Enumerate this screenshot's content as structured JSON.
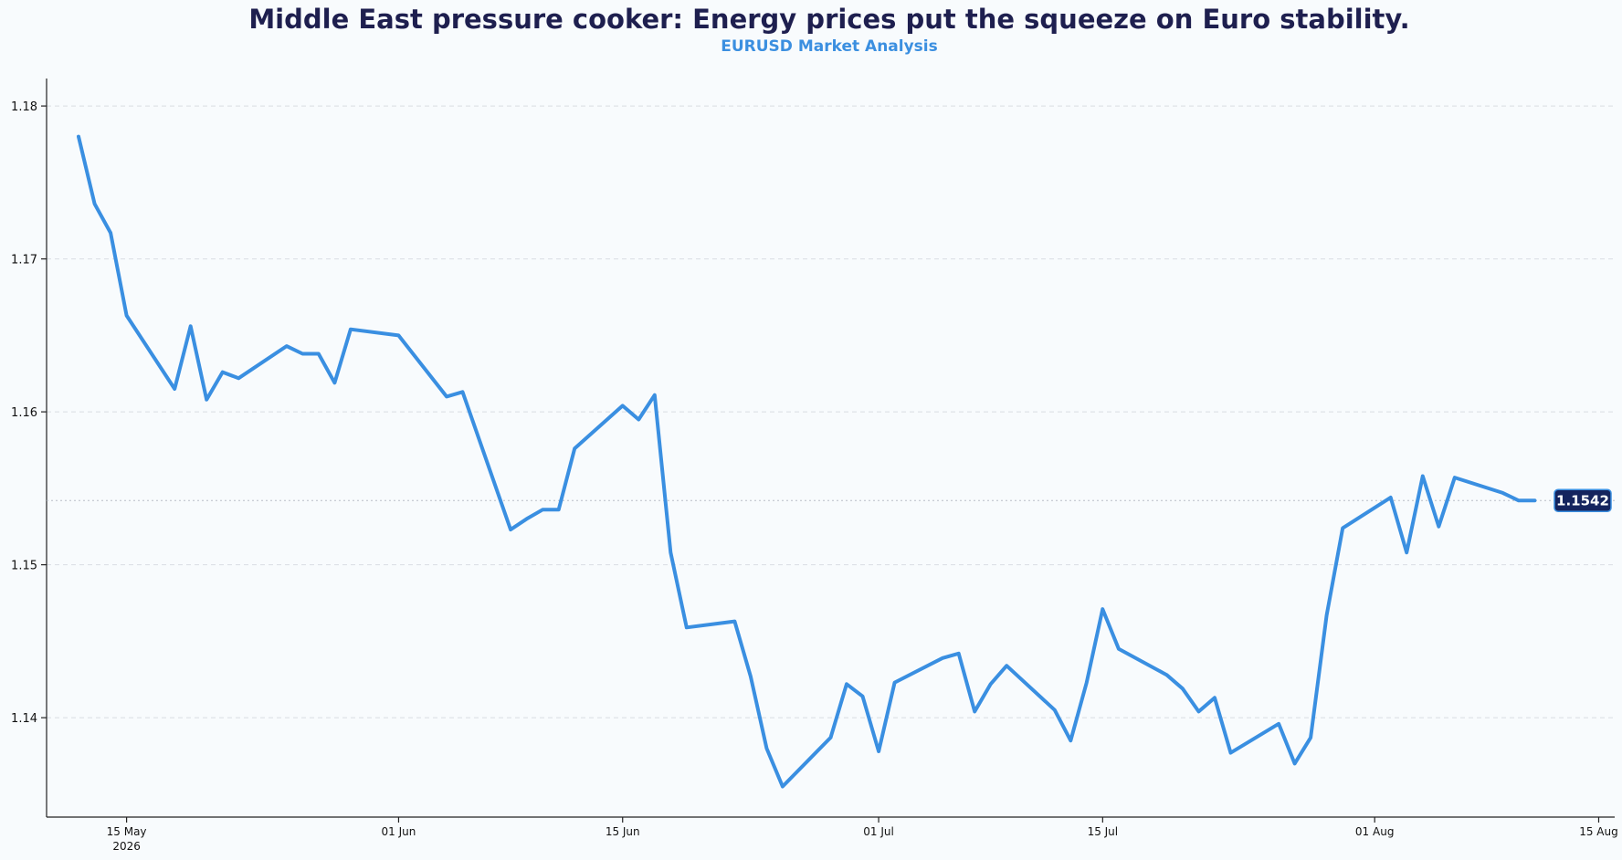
{
  "chart_data": {
    "type": "line",
    "title": "Middle East pressure cooker: Energy prices put the squeeze on Euro stability.",
    "subtitle": "EURUSD Market Analysis",
    "xlabel": "",
    "ylabel": "",
    "ylim": [
      1.1335,
      1.1812
    ],
    "xlim": [
      "2026-05-10",
      "2026-08-16"
    ],
    "y_ticks": [
      "1.14",
      "1.15",
      "1.16",
      "1.17",
      "1.18"
    ],
    "y_tick_values": [
      1.14,
      1.15,
      1.16,
      1.17,
      1.18
    ],
    "x_ticks": [
      {
        "date": "2026-05-15",
        "label": "15 May",
        "sublabel": "2026"
      },
      {
        "date": "2026-06-01",
        "label": "01 Jun",
        "sublabel": ""
      },
      {
        "date": "2026-06-15",
        "label": "15 Jun",
        "sublabel": ""
      },
      {
        "date": "2026-07-01",
        "label": "01 Jul",
        "sublabel": ""
      },
      {
        "date": "2026-07-15",
        "label": "15 Jul",
        "sublabel": ""
      },
      {
        "date": "2026-08-01",
        "label": "01 Aug",
        "sublabel": ""
      },
      {
        "date": "2026-08-15",
        "label": "15 Aug",
        "sublabel": ""
      }
    ],
    "grid": "horizontal dashed",
    "colors": {
      "line": "#3a8fe1",
      "badge_bg": "#15245e",
      "title": "#1e1f4f",
      "subtitle": "#3b8fe0"
    },
    "last_value_label": "1.1542",
    "last_value": 1.1542,
    "series": [
      {
        "x": [
          "2026-05-12",
          "2026-05-13",
          "2026-05-14",
          "2026-05-15",
          "2026-05-18",
          "2026-05-19",
          "2026-05-20",
          "2026-05-21",
          "2026-05-22",
          "2026-05-25",
          "2026-05-26",
          "2026-05-27",
          "2026-05-28",
          "2026-05-29",
          "2026-06-01",
          "2026-06-04",
          "2026-06-05",
          "2026-06-08",
          "2026-06-09",
          "2026-06-10",
          "2026-06-11",
          "2026-06-12",
          "2026-06-15",
          "2026-06-16",
          "2026-06-17",
          "2026-06-18",
          "2026-06-19",
          "2026-06-22",
          "2026-06-23",
          "2026-06-24",
          "2026-06-25",
          "2026-06-28",
          "2026-06-29",
          "2026-06-30",
          "2026-07-01",
          "2026-07-02",
          "2026-07-05",
          "2026-07-06",
          "2026-07-07",
          "2026-07-08",
          "2026-07-09",
          "2026-07-12",
          "2026-07-13",
          "2026-07-14",
          "2026-07-15",
          "2026-07-16",
          "2026-07-19",
          "2026-07-20",
          "2026-07-21",
          "2026-07-22",
          "2026-07-23",
          "2026-07-26",
          "2026-07-27",
          "2026-07-28",
          "2026-07-29",
          "2026-07-30",
          "2026-08-02",
          "2026-08-03",
          "2026-08-04",
          "2026-08-05",
          "2026-08-06",
          "2026-08-09",
          "2026-08-10",
          "2026-08-11"
        ],
        "values": [
          1.178,
          1.1736,
          1.1717,
          1.1663,
          1.1615,
          1.1656,
          1.1608,
          1.1626,
          1.1622,
          1.1643,
          1.1638,
          1.1638,
          1.1619,
          1.1654,
          1.165,
          1.161,
          1.1613,
          1.1523,
          1.153,
          1.1536,
          1.1536,
          1.1576,
          1.1604,
          1.1595,
          1.1611,
          1.1508,
          1.1459,
          1.1463,
          1.1427,
          1.138,
          1.1355,
          1.1387,
          1.1422,
          1.1414,
          1.1378,
          1.1423,
          1.1439,
          1.1442,
          1.1404,
          1.1422,
          1.1434,
          1.1405,
          1.1385,
          1.1423,
          1.1471,
          1.1445,
          1.1428,
          1.1419,
          1.1404,
          1.1413,
          1.1377,
          1.1396,
          1.137,
          1.1387,
          1.1467,
          1.1524,
          1.1544,
          1.1508,
          1.1558,
          1.1525,
          1.1557,
          1.1547,
          1.1542,
          1.1542
        ]
      }
    ]
  }
}
